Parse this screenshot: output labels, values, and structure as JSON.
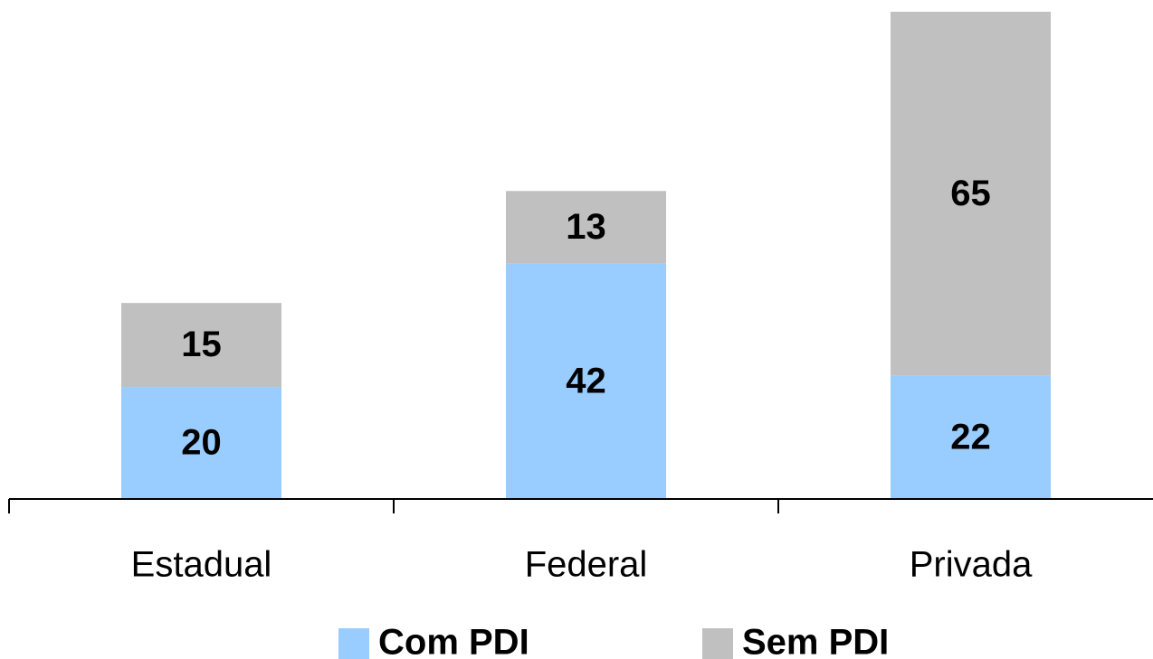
{
  "chart_data": {
    "type": "stacked_bar",
    "categories": [
      "Estadual",
      "Federal",
      "Privada"
    ],
    "series": [
      {
        "name": "Com PDI",
        "color": "#99ccff",
        "values": [
          20,
          42,
          22
        ]
      },
      {
        "name": "Sem PDI",
        "color": "#c0c0c0",
        "values": [
          15,
          13,
          65
        ]
      }
    ],
    "legend": "bottom"
  }
}
